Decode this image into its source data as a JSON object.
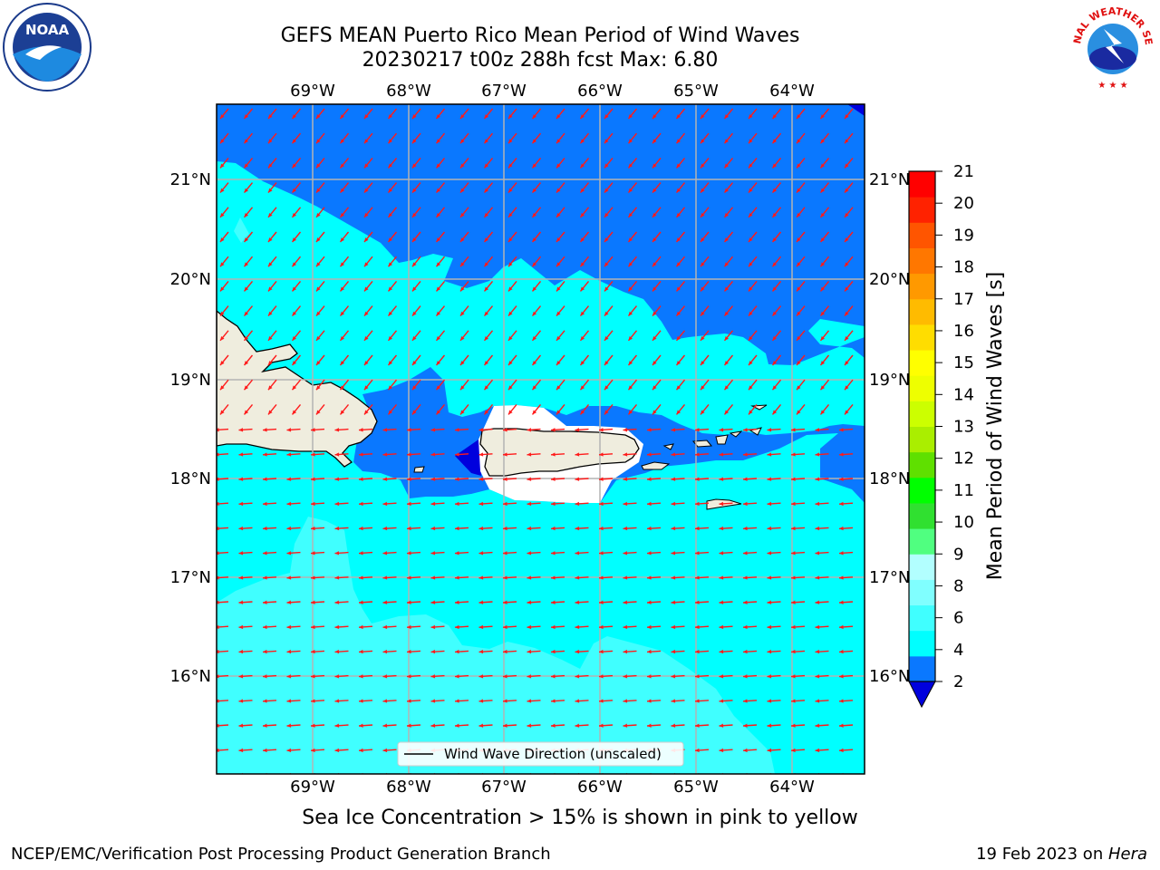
{
  "title": {
    "line1": "GEFS MEAN Puerto Rico Mean Period of Wind Waves",
    "line2": "20230217 t00z 288h fcst   Max: 6.80"
  },
  "logos": {
    "left": {
      "icon": "noaa-logo",
      "text": "NOAA"
    },
    "right": {
      "icon": "national-weather-service-logo",
      "text": "NATIONAL WEATHER SERVICE"
    }
  },
  "map": {
    "lon_ticks": [
      "69°W",
      "68°W",
      "67°W",
      "66°W",
      "65°W",
      "64°W"
    ],
    "lat_ticks": [
      "21°N",
      "20°N",
      "19°N",
      "18°N",
      "17°N",
      "16°N"
    ],
    "legend": "Wind Wave Direction (unscaled)",
    "arrow_color": "#ff1a1a",
    "land_color": "#efedde",
    "wave_direction": "toward west-southwest"
  },
  "colorbar": {
    "label": "Mean Period of Wind Waves [s]",
    "ticks": [
      "21",
      "20",
      "19",
      "18",
      "17",
      "16",
      "15",
      "14",
      "13",
      "12",
      "11",
      "10",
      "9",
      "8",
      "6",
      "4",
      "2"
    ],
    "colors": [
      "#0000dd",
      "#0a78ff",
      "#00ffff",
      "#40ffff",
      "#80ffff",
      "#b2ffff",
      "#50ff80",
      "#30e030",
      "#00ff00",
      "#5fe000",
      "#aaee00",
      "#ccff00",
      "#eeff00",
      "#ffff00",
      "#ffdd00",
      "#ffbb00",
      "#ff9900",
      "#ff7700",
      "#ff5500",
      "#ff2200",
      "#ff0000"
    ]
  },
  "caption": "Sea Ice Concentration > 15% is shown in pink to yellow",
  "footer": {
    "left": "NCEP/EMC/Verification Post Processing Product Generation Branch",
    "right_prefix": "19 Feb 2023 on ",
    "right_emph": "Hera"
  }
}
